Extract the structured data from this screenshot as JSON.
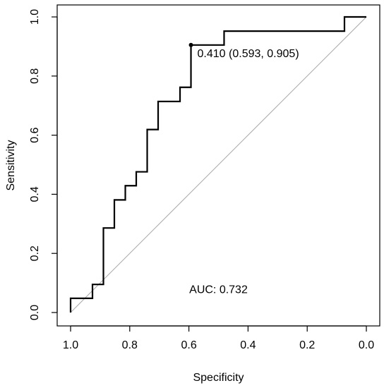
{
  "chart_data": {
    "type": "line",
    "title": "",
    "xlabel": "Specificity",
    "ylabel": "Sensitivity",
    "xlim": [
      1.0,
      0.0
    ],
    "ylim": [
      0.0,
      1.0
    ],
    "x_reversed": true,
    "grid": false,
    "legend": "none",
    "x_ticks": [
      1.0,
      0.8,
      0.6,
      0.4,
      0.2,
      0.0
    ],
    "x_tick_labels": [
      "1.0",
      "0.8",
      "0.6",
      "0.4",
      "0.2",
      "0.0"
    ],
    "y_ticks": [
      0.0,
      0.2,
      0.4,
      0.6,
      0.8,
      1.0
    ],
    "y_tick_labels": [
      "0.0",
      "0.2",
      "0.4",
      "0.6",
      "0.8",
      "1.0"
    ],
    "series": [
      {
        "color": "#000000",
        "points": [
          [
            1.0,
            0.0
          ],
          [
            1.0,
            0.048
          ],
          [
            0.926,
            0.048
          ],
          [
            0.926,
            0.095
          ],
          [
            0.889,
            0.095
          ],
          [
            0.889,
            0.286
          ],
          [
            0.852,
            0.286
          ],
          [
            0.852,
            0.381
          ],
          [
            0.815,
            0.381
          ],
          [
            0.815,
            0.429
          ],
          [
            0.778,
            0.429
          ],
          [
            0.778,
            0.476
          ],
          [
            0.741,
            0.476
          ],
          [
            0.741,
            0.619
          ],
          [
            0.704,
            0.619
          ],
          [
            0.704,
            0.714
          ],
          [
            0.63,
            0.714
          ],
          [
            0.63,
            0.762
          ],
          [
            0.593,
            0.762
          ],
          [
            0.593,
            0.905
          ],
          [
            0.481,
            0.905
          ],
          [
            0.481,
            0.952
          ],
          [
            0.074,
            0.952
          ],
          [
            0.074,
            1.0
          ],
          [
            0.0,
            1.0
          ]
        ]
      }
    ],
    "reference_line": {
      "from": [
        1.0,
        0.0
      ],
      "to": [
        0.0,
        1.0
      ],
      "color": "#aaaaaa"
    },
    "threshold_point": {
      "x": 0.593,
      "y": 0.905,
      "label": "0.410 (0.593, 0.905)"
    },
    "annotations": [
      {
        "text": "AUC: 0.732",
        "x": 0.5,
        "y": 0.08
      }
    ]
  }
}
